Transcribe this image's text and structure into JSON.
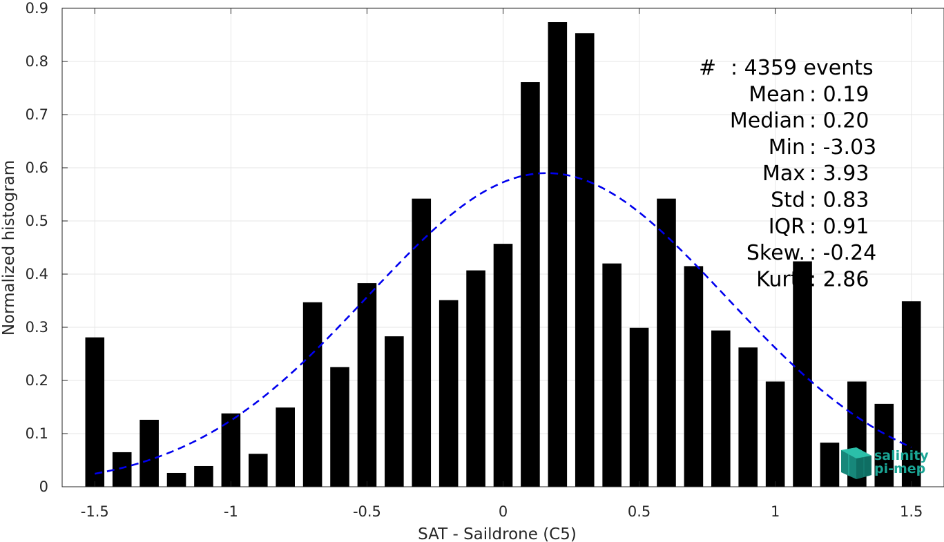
{
  "chart_data": {
    "type": "bar",
    "xlabel": "SAT - Saildrone (C5)",
    "ylabel": "Normalized histogram",
    "xlim": [
      -1.62,
      1.62
    ],
    "ylim": [
      0,
      0.9
    ],
    "xticks": [
      -1.5,
      -1,
      -0.5,
      0,
      0.5,
      1,
      1.5
    ],
    "xtick_labels": [
      "-1.5",
      "-1",
      "-0.5",
      "0",
      "0.5",
      "1",
      "1.5"
    ],
    "yticks": [
      0,
      0.1,
      0.2,
      0.3,
      0.4,
      0.5,
      0.6,
      0.7,
      0.8,
      0.9
    ],
    "ytick_labels": [
      "0",
      "0.1",
      "0.2",
      "0.3",
      "0.4",
      "0.5",
      "0.6",
      "0.7",
      "0.8",
      "0.9"
    ],
    "grid": true,
    "bar_color": "#000000",
    "bins": [
      -1.5,
      -1.4,
      -1.3,
      -1.2,
      -1.1,
      -1.0,
      -0.9,
      -0.8,
      -0.7,
      -0.6,
      -0.5,
      -0.4,
      -0.3,
      -0.2,
      -0.1,
      0.0,
      0.1,
      0.2,
      0.3,
      0.4,
      0.5,
      0.6,
      0.7,
      0.8,
      0.9,
      1.0,
      1.1,
      1.2,
      1.3,
      1.4,
      1.5
    ],
    "values": [
      0.281,
      0.065,
      0.126,
      0.026,
      0.039,
      0.138,
      0.062,
      0.149,
      0.347,
      0.225,
      0.383,
      0.283,
      0.542,
      0.351,
      0.407,
      0.457,
      0.761,
      0.874,
      0.853,
      0.42,
      0.299,
      0.542,
      0.415,
      0.294,
      0.262,
      0.198,
      0.424,
      0.083,
      0.198,
      0.156,
      0.349
    ],
    "fit_curve": {
      "type": "gaussian",
      "mean": 0.16,
      "peak": 0.59,
      "sigma": 0.658,
      "x_range": [
        -1.5,
        1.5
      ],
      "color": "#0000ee",
      "style": "dashed"
    },
    "stats": [
      {
        "label": "#",
        "value": ": 4359 events"
      },
      {
        "label": "Mean",
        "value": ": 0.19"
      },
      {
        "label": "Median",
        "value": ": 0.20"
      },
      {
        "label": "Min",
        "value": ": -3.03"
      },
      {
        "label": "Max",
        "value": ": 3.93"
      },
      {
        "label": "Std",
        "value": ": 0.83"
      },
      {
        "label": "IQR",
        "value": ": 0.91"
      },
      {
        "label": "Skew.",
        "value": ": -0.24"
      },
      {
        "label": "Kurt.",
        "value": ": 2.86"
      }
    ],
    "logo": {
      "line1": "salinity",
      "line2": "pi-mep",
      "color": "#1aa595"
    }
  }
}
